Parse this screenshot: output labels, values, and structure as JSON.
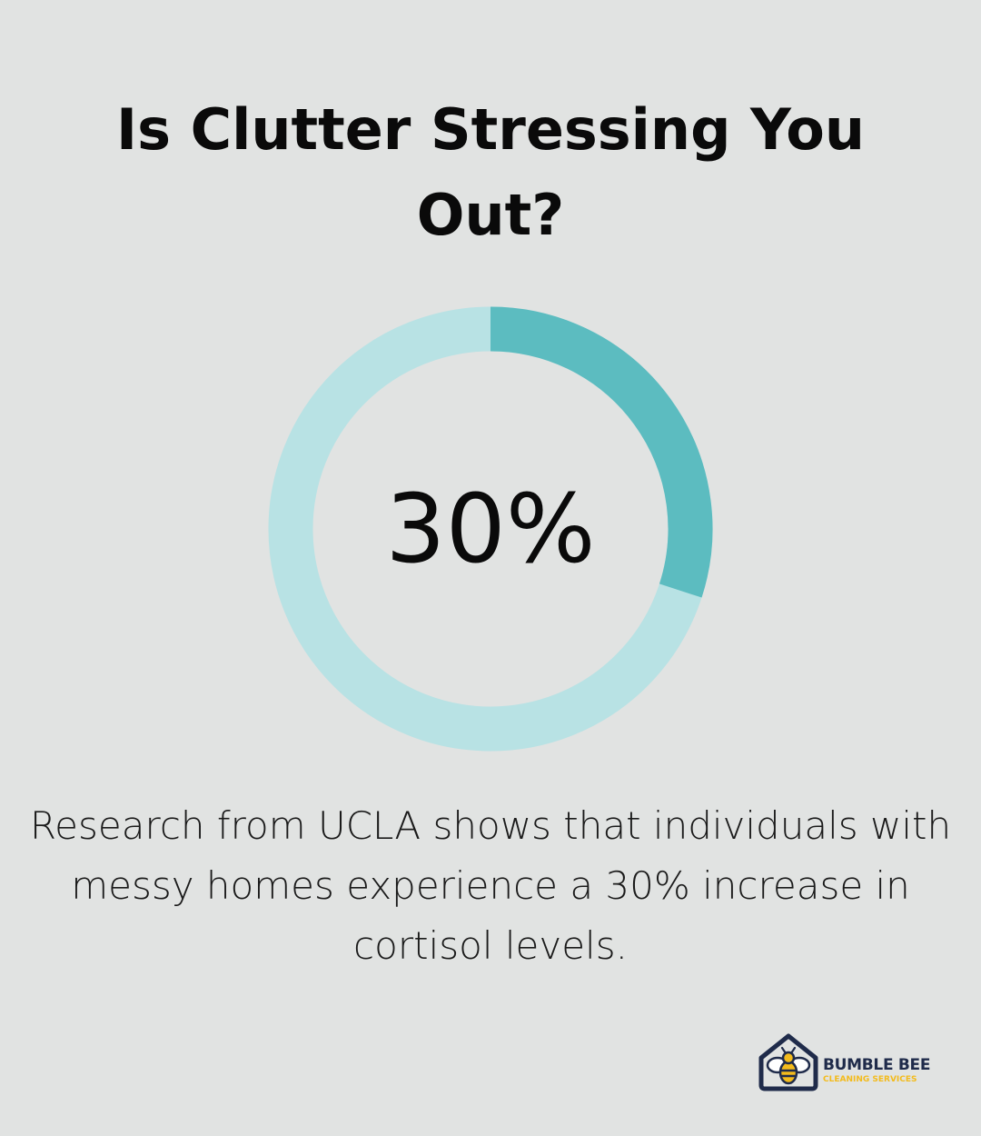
{
  "title": "Is Clutter Stressing You Out?",
  "chart_data": {
    "type": "pie",
    "variant": "donut",
    "value_label": "30%",
    "values": [
      30,
      70
    ],
    "highlighted_value": 30,
    "colors": {
      "highlight": "#5cbcc0",
      "remainder": "#b8e2e4"
    }
  },
  "description": "Research from UCLA shows that individuals with messy homes experience a 30% increase in cortisol levels.",
  "logo": {
    "name": "BUMBLE BEE",
    "subtitle": "CLEANING SERVICES",
    "icon": "bee-house-icon",
    "colors": {
      "navy": "#1f2b4a",
      "yellow": "#f3bb1c"
    }
  }
}
